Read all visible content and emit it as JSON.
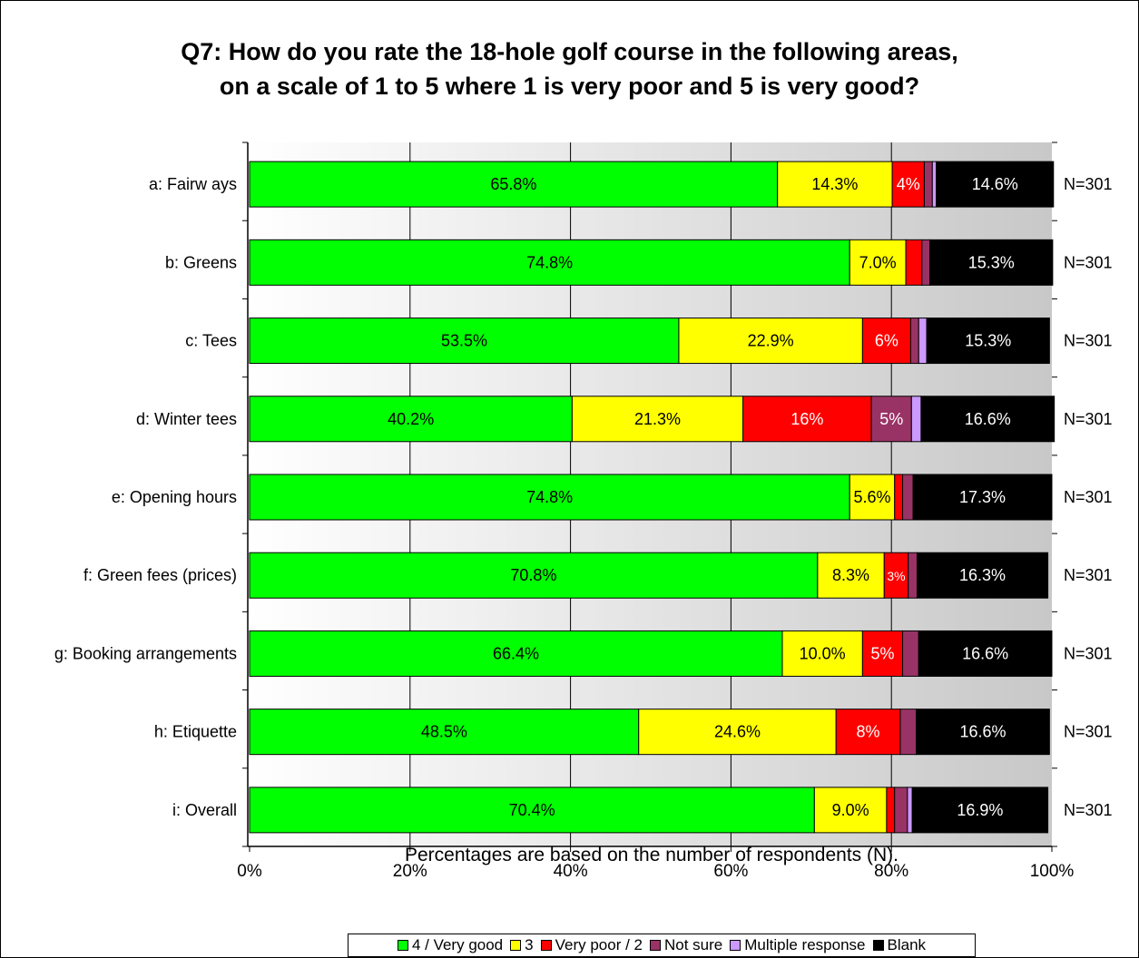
{
  "chart_data": {
    "type": "bar",
    "orientation": "horizontal",
    "stacked": true,
    "title": [
      "Q7: How do you rate the 18-hole golf course in the following areas,",
      "on a scale of 1 to 5 where 1 is very poor and 5 is very good?"
    ],
    "xlabel": "Percentages are based on the number of respondents (N).",
    "xlim": [
      0,
      100
    ],
    "xticks": [
      "0%",
      "20%",
      "40%",
      "60%",
      "80%",
      "100%"
    ],
    "grid": true,
    "legend_position": "bottom",
    "categories": [
      "a: Fairw ays",
      "b: Greens",
      "c: Tees",
      "d: Winter tees",
      "e: Opening hours",
      "f: Green fees (prices)",
      "g: Booking arrangements",
      "h: Etiquette",
      "i: Overall"
    ],
    "n_labels": [
      "N=301",
      "N=301",
      "N=301",
      "N=301",
      "N=301",
      "N=301",
      "N=301",
      "N=301",
      "N=301"
    ],
    "series": [
      {
        "name": "4 / Very good",
        "color": "#00ff00",
        "text_color": "#000000",
        "values": [
          65.8,
          74.8,
          53.5,
          40.2,
          74.8,
          70.8,
          66.4,
          48.5,
          70.4
        ],
        "labels": [
          "65.8%",
          "74.8%",
          "53.5%",
          "40.2%",
          "74.8%",
          "70.8%",
          "66.4%",
          "48.5%",
          "70.4%"
        ]
      },
      {
        "name": "3",
        "color": "#ffff00",
        "text_color": "#000000",
        "values": [
          14.3,
          7.0,
          22.9,
          21.3,
          5.6,
          8.3,
          10.0,
          24.6,
          9.0
        ],
        "labels": [
          "14.3%",
          "7.0%",
          "22.9%",
          "21.3%",
          "5.6%",
          "8.3%",
          "10.0%",
          "24.6%",
          "9.0%"
        ]
      },
      {
        "name": "Very poor / 2",
        "color": "#ff0000",
        "text_color": "#ffffff",
        "values": [
          4.0,
          2.0,
          6.0,
          16.0,
          1.0,
          3.0,
          5.0,
          8.0,
          1.0
        ],
        "labels": [
          "4%",
          "",
          "6%",
          "16%",
          "",
          "3%",
          "5%",
          "8%",
          ""
        ]
      },
      {
        "name": "Not sure",
        "color": "#993366",
        "text_color": "#ffffff",
        "values": [
          1.0,
          1.0,
          1.0,
          5.0,
          1.3,
          1.1,
          2.0,
          2.0,
          1.6
        ],
        "labels": [
          "",
          "",
          "",
          "5%",
          "",
          "",
          "",
          "",
          ""
        ]
      },
      {
        "name": "Multiple response",
        "color": "#cc99ff",
        "text_color": "#000000",
        "values": [
          0.5,
          0.0,
          1.0,
          1.2,
          0.0,
          0.0,
          0.0,
          0.0,
          0.6
        ],
        "labels": [
          "",
          "",
          "",
          "",
          "",
          "",
          "",
          "",
          ""
        ]
      },
      {
        "name": "Blank",
        "color": "#000000",
        "text_color": "#ffffff",
        "values": [
          14.6,
          15.3,
          15.3,
          16.6,
          17.3,
          16.3,
          16.6,
          16.6,
          16.9
        ],
        "labels": [
          "14.6%",
          "15.3%",
          "15.3%",
          "16.6%",
          "17.3%",
          "16.3%",
          "16.6%",
          "16.6%",
          "16.9%"
        ]
      }
    ]
  }
}
